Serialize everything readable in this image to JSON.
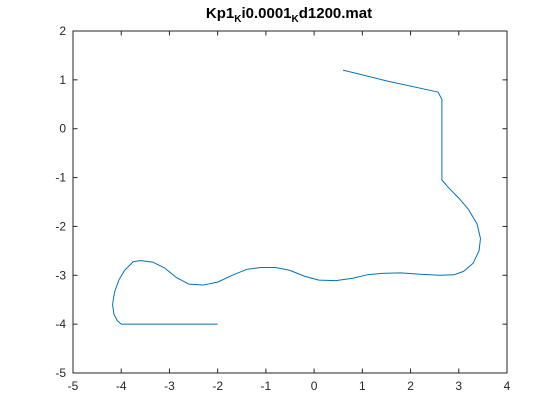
{
  "chart_data": {
    "type": "line",
    "title": {
      "parts": [
        {
          "text": "Kp1",
          "sub": false
        },
        {
          "text": "K",
          "sub": true
        },
        {
          "text": "i0.0001",
          "sub": false
        },
        {
          "text": "K",
          "sub": true
        },
        {
          "text": "d1200.mat",
          "sub": false
        }
      ]
    },
    "xlabel": "",
    "ylabel": "",
    "xlim": [
      -5,
      4
    ],
    "ylim": [
      -5,
      2
    ],
    "xticks": [
      "-5",
      "-4",
      "-3",
      "-2",
      "-1",
      "0",
      "1",
      "2",
      "3",
      "4"
    ],
    "yticks": [
      "-5",
      "-4",
      "-3",
      "-2",
      "-1",
      "0",
      "1",
      "2"
    ],
    "grid": false,
    "legend": "none",
    "series": [
      {
        "color": "#0072bd",
        "points": [
          [
            -2.0,
            -4.0
          ],
          [
            -4.0,
            -4.0
          ],
          [
            -4.08,
            -3.93
          ],
          [
            -4.15,
            -3.8
          ],
          [
            -4.18,
            -3.6
          ],
          [
            -4.14,
            -3.35
          ],
          [
            -4.05,
            -3.1
          ],
          [
            -3.93,
            -2.9
          ],
          [
            -3.75,
            -2.72
          ],
          [
            -3.6,
            -2.7
          ],
          [
            -3.35,
            -2.73
          ],
          [
            -3.1,
            -2.85
          ],
          [
            -2.85,
            -3.05
          ],
          [
            -2.6,
            -3.18
          ],
          [
            -2.3,
            -3.2
          ],
          [
            -2.0,
            -3.14
          ],
          [
            -1.7,
            -3.0
          ],
          [
            -1.4,
            -2.88
          ],
          [
            -1.1,
            -2.84
          ],
          [
            -0.8,
            -2.84
          ],
          [
            -0.5,
            -2.9
          ],
          [
            -0.2,
            -3.02
          ],
          [
            0.1,
            -3.1
          ],
          [
            0.45,
            -3.11
          ],
          [
            0.8,
            -3.06
          ],
          [
            1.1,
            -2.99
          ],
          [
            1.4,
            -2.96
          ],
          [
            1.8,
            -2.95
          ],
          [
            2.2,
            -2.98
          ],
          [
            2.6,
            -3.0
          ],
          [
            2.9,
            -2.99
          ],
          [
            3.1,
            -2.92
          ],
          [
            3.3,
            -2.75
          ],
          [
            3.42,
            -2.5
          ],
          [
            3.45,
            -2.25
          ],
          [
            3.38,
            -1.95
          ],
          [
            3.2,
            -1.65
          ],
          [
            3.0,
            -1.42
          ],
          [
            2.8,
            -1.22
          ],
          [
            2.65,
            -1.05
          ],
          [
            2.65,
            0.6
          ],
          [
            2.57,
            0.75
          ],
          [
            1.5,
            0.98
          ],
          [
            0.6,
            1.2
          ]
        ]
      }
    ]
  }
}
